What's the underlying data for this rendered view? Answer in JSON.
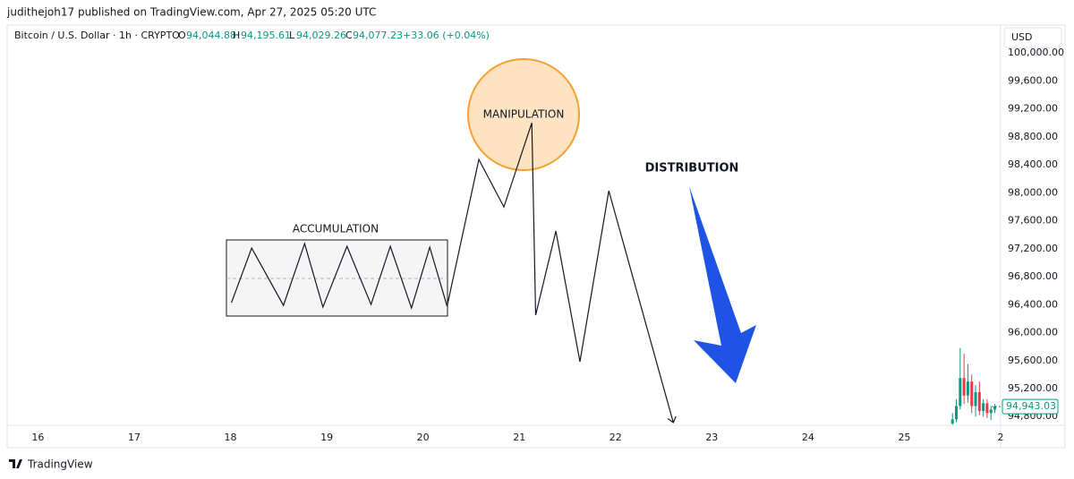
{
  "header": {
    "text": "judithejoh17 published on TradingView.com, Apr 27, 2025 05:20 UTC"
  },
  "legend": {
    "symbol": "Bitcoin / U.S. Dollar · 1h · CRYPTO",
    "o_label": "O",
    "o": "94,044.88",
    "h_label": "H",
    "h": "94,195.61",
    "l_label": "L",
    "l": "94,029.26",
    "c_label": "C",
    "c": "94,077.23",
    "change": "+33.06 (+0.04%)"
  },
  "currency": "USD",
  "footer": {
    "brand": "TradingView"
  },
  "chart_data": {
    "type": "line",
    "x": [
      18.01,
      18.22,
      18.55,
      18.77,
      18.96,
      19.21,
      19.46,
      19.66,
      19.88,
      20.07,
      20.25,
      20.58,
      20.84,
      21.13,
      21.17,
      21.38,
      21.63,
      21.93,
      22.6
    ],
    "values": [
      96429,
      97210,
      96390,
      97274,
      96365,
      97235,
      96403,
      97235,
      96352,
      97222,
      96378,
      98477,
      97798,
      99002,
      96250,
      97453,
      95584,
      98029,
      94714
    ],
    "color": "#131722",
    "candles": {
      "x": [
        25.5,
        25.54,
        25.58,
        25.62,
        25.66,
        25.7,
        25.74,
        25.78,
        25.82,
        25.86,
        25.9,
        25.94
      ],
      "open": [
        94700,
        94760,
        94950,
        95350,
        95100,
        95300,
        94950,
        95150,
        94880,
        94990,
        94850,
        94900
      ],
      "close": [
        94760,
        94950,
        95350,
        95100,
        95300,
        94950,
        95150,
        94880,
        94990,
        94850,
        94900,
        94943
      ],
      "high": [
        94850,
        95050,
        95780,
        95700,
        95550,
        95400,
        95250,
        95300,
        95050,
        95050,
        94950,
        94980
      ],
      "low": [
        94680,
        94720,
        94900,
        94980,
        95000,
        94850,
        94800,
        94820,
        94800,
        94780,
        94750,
        94850
      ],
      "up_color": "#089981",
      "down_color": "#f23645"
    },
    "last_price": {
      "value": 94943.03,
      "label": "94,943.03",
      "color": "#089981"
    },
    "annotations": [
      "ACCUMULATION",
      "MANIPULATION",
      "DISTRIBUTION"
    ],
    "xlim": [
      15.68,
      26.0
    ],
    "xticks": [
      16,
      17,
      18,
      19,
      20,
      21,
      22,
      23,
      24,
      25,
      {
        "value": 26,
        "label": "2"
      }
    ],
    "ylim": [
      94675,
      100400
    ],
    "yticks": [
      {
        "value": 94800,
        "label": "94,800.00"
      },
      {
        "value": 95200,
        "label": "95,200.00"
      },
      {
        "value": 95600,
        "label": "95,600.00"
      },
      {
        "value": 96000,
        "label": "96,000.00"
      },
      {
        "value": 96400,
        "label": "96,400.00"
      },
      {
        "value": 96800,
        "label": "96,800.00"
      },
      {
        "value": 97200,
        "label": "97,200.00"
      },
      {
        "value": 97600,
        "label": "97,600.00"
      },
      {
        "value": 98000,
        "label": "98,000.00"
      },
      {
        "value": 98400,
        "label": "98,400.00"
      },
      {
        "value": 98800,
        "label": "98,800.00"
      },
      {
        "value": 99200,
        "label": "99,200.00"
      },
      {
        "value": 99600,
        "label": "99,600.00"
      },
      {
        "value": 100000,
        "label": "100,000.00"
      }
    ],
    "grid": false
  }
}
